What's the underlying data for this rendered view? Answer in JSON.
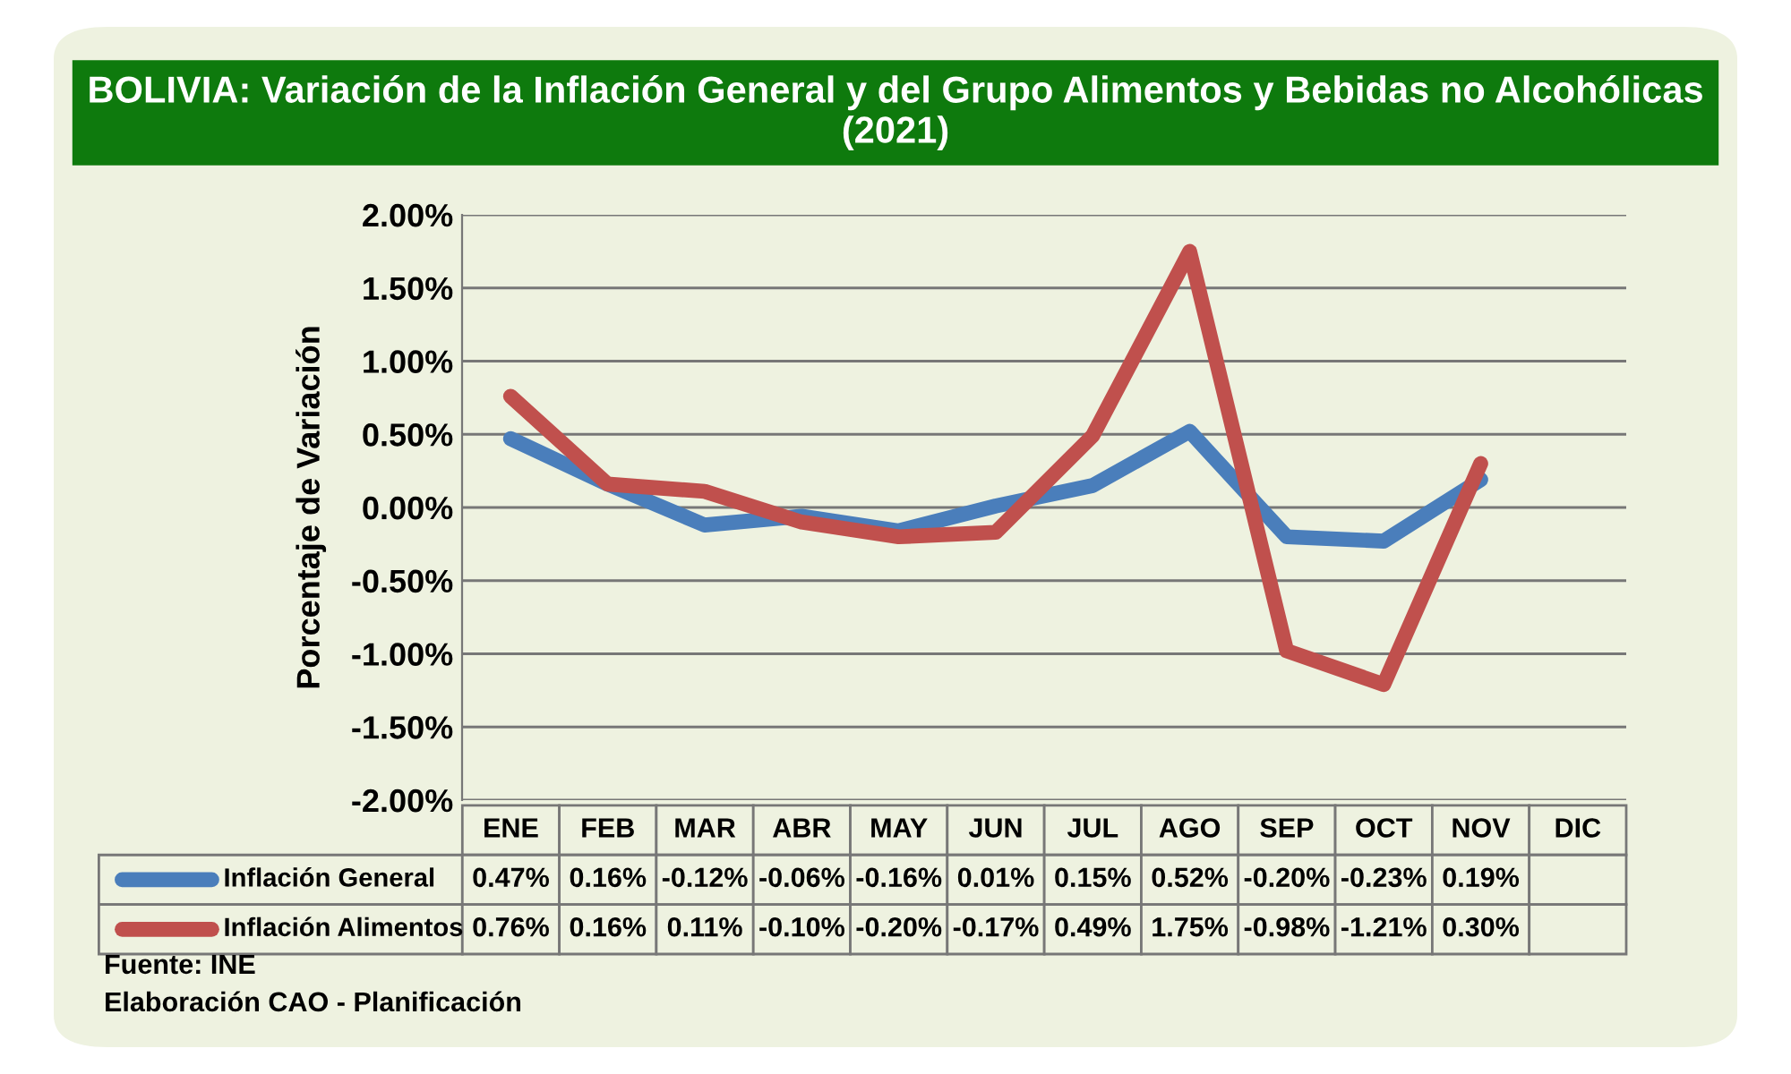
{
  "chart_data": {
    "type": "line",
    "title": "BOLIVIA: Variación de la Inflación General y del Grupo Alimentos y Bebidas no Alcohólicas (2021)",
    "ylabel": "Porcentaje de Variación",
    "categories": [
      "ENE",
      "FEB",
      "MAR",
      "ABR",
      "MAY",
      "JUN",
      "JUL",
      "AGO",
      "SEP",
      "OCT",
      "NOV",
      "DIC"
    ],
    "series": [
      {
        "name": "Inflación General",
        "color": "#4a7ebb",
        "values": [
          0.47,
          0.16,
          -0.12,
          -0.06,
          -0.16,
          0.01,
          0.15,
          0.52,
          -0.2,
          -0.23,
          0.19,
          null
        ],
        "value_labels": [
          "0.47%",
          "0.16%",
          "-0.12%",
          "-0.06%",
          "-0.16%",
          "0.01%",
          "0.15%",
          "0.52%",
          "-0.20%",
          "-0.23%",
          "0.19%",
          null
        ]
      },
      {
        "name": "Inflación Alimentos",
        "color": "#c0504d",
        "values": [
          0.76,
          0.16,
          0.11,
          -0.1,
          -0.2,
          -0.17,
          0.49,
          1.75,
          -0.98,
          -1.21,
          0.3,
          null
        ],
        "value_labels": [
          "0.76%",
          "0.16%",
          "0.11%",
          "-0.10%",
          "-0.20%",
          "-0.17%",
          "0.49%",
          "1.75%",
          "-0.98%",
          "-1.21%",
          "0.30%",
          null
        ]
      }
    ],
    "ylim": [
      -2,
      2
    ],
    "yticks": [
      {
        "value": -2,
        "label": "-2.00%"
      },
      {
        "value": -1.5,
        "label": "-1.50%"
      },
      {
        "value": -1,
        "label": "-1.00%"
      },
      {
        "value": -0.5,
        "label": "-0.50%"
      },
      {
        "value": 0,
        "label": "0.00%"
      },
      {
        "value": 0.5,
        "label": "0.50%"
      },
      {
        "value": 1,
        "label": "1.00%"
      },
      {
        "value": 1.5,
        "label": "1.50%"
      },
      {
        "value": 2,
        "label": "2.00%"
      }
    ],
    "grid": "y",
    "line_style": "solid",
    "legend": "bottom left",
    "annotations": [
      "Fuente: INE",
      "Elaboración CAO - Planificación"
    ]
  }
}
